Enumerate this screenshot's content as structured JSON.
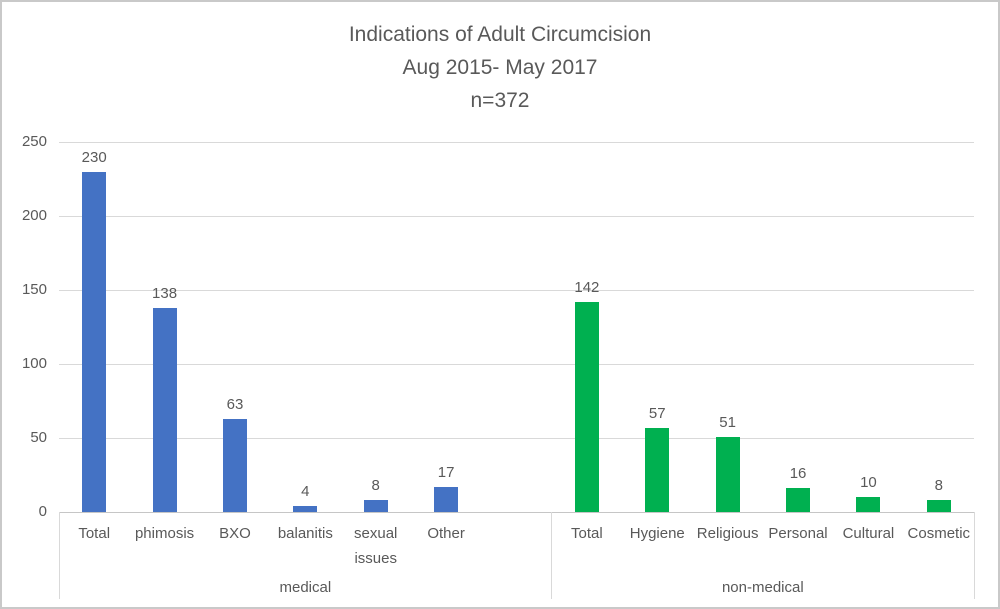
{
  "chart_data": {
    "type": "bar",
    "title_lines": [
      "Indications of Adult Circumcision",
      "Aug 2015- May 2017",
      "n=372"
    ],
    "y_axis": {
      "min": 0,
      "max": 250,
      "ticks": [
        0,
        50,
        100,
        150,
        200,
        250
      ]
    },
    "grid": true,
    "data_labels": true,
    "legend": "none",
    "groups": [
      {
        "label": "medical",
        "color": "#4472C4",
        "categories": [
          "Total",
          "phimosis",
          "BXO",
          "balanitis",
          "sexual issues",
          "Other"
        ],
        "values": [
          230,
          138,
          63,
          4,
          8,
          17
        ]
      },
      {
        "label": "non-medical",
        "color": "#00B050",
        "categories": [
          "Total",
          "Hygiene",
          "Religious",
          "Personal",
          "Cultural",
          "Cosmetic"
        ],
        "values": [
          142,
          57,
          51,
          16,
          10,
          8
        ]
      }
    ],
    "colors": {
      "text": "#595959",
      "gridline": "#D9D9D9",
      "axis_line": "#C6C6C6"
    }
  }
}
